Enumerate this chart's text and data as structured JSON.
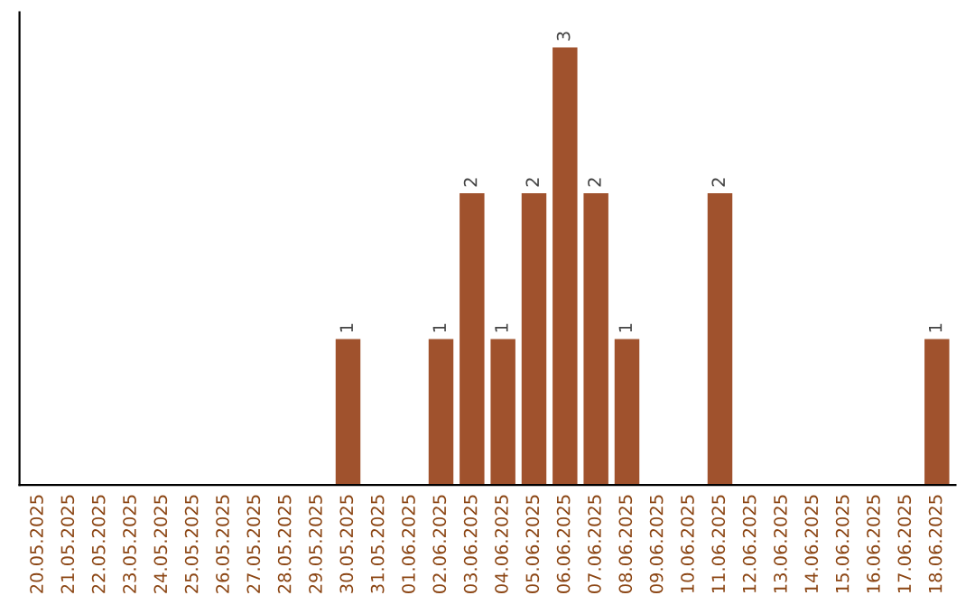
{
  "chart_data": {
    "type": "bar",
    "categories": [
      "20.05.2025",
      "21.05.2025",
      "22.05.2025",
      "23.05.2025",
      "24.05.2025",
      "25.05.2025",
      "26.05.2025",
      "27.05.2025",
      "28.05.2025",
      "29.05.2025",
      "30.05.2025",
      "31.05.2025",
      "01.06.2025",
      "02.06.2025",
      "03.06.2025",
      "04.06.2025",
      "05.06.2025",
      "06.06.2025",
      "07.06.2025",
      "08.06.2025",
      "09.06.2025",
      "10.06.2025",
      "11.06.2025",
      "12.06.2025",
      "13.06.2025",
      "14.06.2025",
      "15.06.2025",
      "16.06.2025",
      "17.06.2025",
      "18.06.2025"
    ],
    "values": [
      0,
      0,
      0,
      0,
      0,
      0,
      0,
      0,
      0,
      0,
      1,
      0,
      0,
      1,
      2,
      1,
      2,
      3,
      2,
      1,
      0,
      0,
      2,
      0,
      0,
      0,
      0,
      0,
      0,
      1
    ],
    "color": "#a0522d",
    "value_labels": [
      null,
      null,
      null,
      null,
      null,
      null,
      null,
      null,
      null,
      null,
      "1",
      null,
      null,
      "1",
      "2",
      "1",
      "2",
      "3",
      "2",
      "1",
      null,
      null,
      "2",
      null,
      null,
      null,
      null,
      null,
      null,
      "1"
    ],
    "grid": false,
    "legend": false,
    "tick_labels": "x"
  }
}
